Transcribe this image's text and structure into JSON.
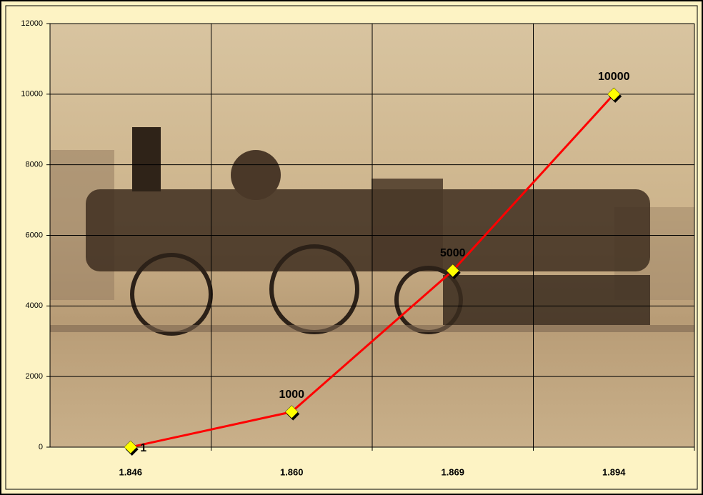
{
  "chart_data": {
    "type": "line",
    "categories": [
      "1.846",
      "1.860",
      "1.869",
      "1.894"
    ],
    "series": [
      {
        "values": [
          1,
          1000,
          5000,
          10000
        ],
        "color": "#ff0000"
      }
    ],
    "ylim": [
      0,
      12000
    ],
    "yticks": [
      0,
      2000,
      4000,
      6000,
      8000,
      10000,
      12000
    ],
    "grid": true,
    "marker_color": "#ffff00"
  }
}
